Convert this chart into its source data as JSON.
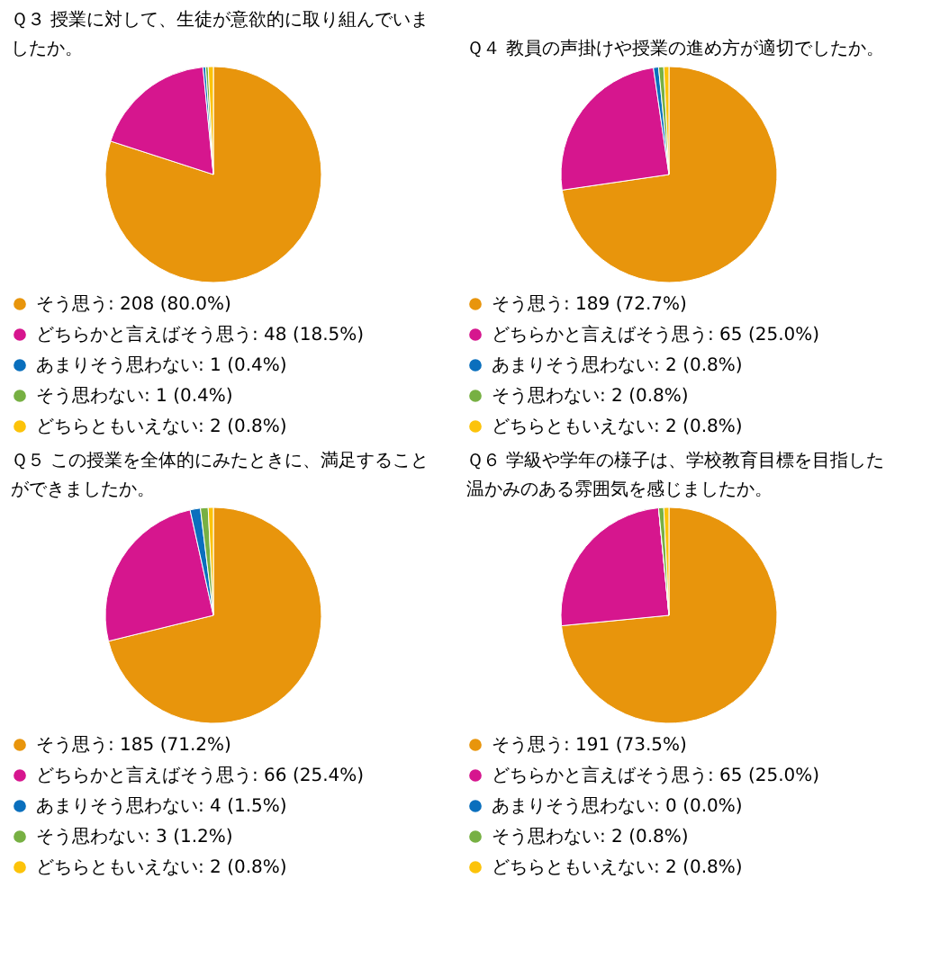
{
  "chart_data": [
    {
      "type": "pie",
      "title": "Ｑ３ 授業に対して、生徒が意欲的に取り組んでいましたか。",
      "categories": [
        "そう思う",
        "どちらかと言えばそう思う",
        "あまりそう思わない",
        "そう思わない",
        "どちらともいえない"
      ],
      "values": [
        208,
        48,
        1,
        1,
        2
      ],
      "value_labels": [
        "208 (80.0%)",
        "48 (18.5%)",
        "1 (0.4%)",
        "1 (0.4%)",
        "2 (0.8%)"
      ],
      "colors": [
        "#e8950c",
        "#d6168e",
        "#0a6fbd",
        "#77b043",
        "#fcc30a"
      ],
      "legend": "bottom"
    },
    {
      "type": "pie",
      "title": "Ｑ４ 教員の声掛けや授業の進め方が適切でしたか。",
      "categories": [
        "そう思う",
        "どちらかと言えばそう思う",
        "あまりそう思わない",
        "そう思わない",
        "どちらともいえない"
      ],
      "values": [
        189,
        65,
        2,
        2,
        2
      ],
      "value_labels": [
        "189 (72.7%)",
        "65 (25.0%)",
        "2 (0.8%)",
        "2 (0.8%)",
        "2 (0.8%)"
      ],
      "colors": [
        "#e8950c",
        "#d6168e",
        "#0a6fbd",
        "#77b043",
        "#fcc30a"
      ],
      "legend": "bottom"
    },
    {
      "type": "pie",
      "title": "Ｑ５ この授業を全体的にみたときに、満足することができましたか。",
      "categories": [
        "そう思う",
        "どちらかと言えばそう思う",
        "あまりそう思わない",
        "そう思わない",
        "どちらともいえない"
      ],
      "values": [
        185,
        66,
        4,
        3,
        2
      ],
      "value_labels": [
        "185 (71.2%)",
        "66 (25.4%)",
        "4 (1.5%)",
        "3 (1.2%)",
        "2 (0.8%)"
      ],
      "colors": [
        "#e8950c",
        "#d6168e",
        "#0a6fbd",
        "#77b043",
        "#fcc30a"
      ],
      "legend": "bottom"
    },
    {
      "type": "pie",
      "title": "Ｑ６ 学級や学年の様子は、学校教育目標を目指した温かみのある雰囲気を感じましたか。",
      "categories": [
        "そう思う",
        "どちらかと言えばそう思う",
        "あまりそう思わない",
        "そう思わない",
        "どちらともいえない"
      ],
      "values": [
        191,
        65,
        0,
        2,
        2
      ],
      "value_labels": [
        "191 (73.5%)",
        "65 (25.0%)",
        "0 (0.0%)",
        "2 (0.8%)",
        "2 (0.8%)"
      ],
      "colors": [
        "#e8950c",
        "#d6168e",
        "#0a6fbd",
        "#77b043",
        "#fcc30a"
      ],
      "legend": "bottom"
    }
  ]
}
